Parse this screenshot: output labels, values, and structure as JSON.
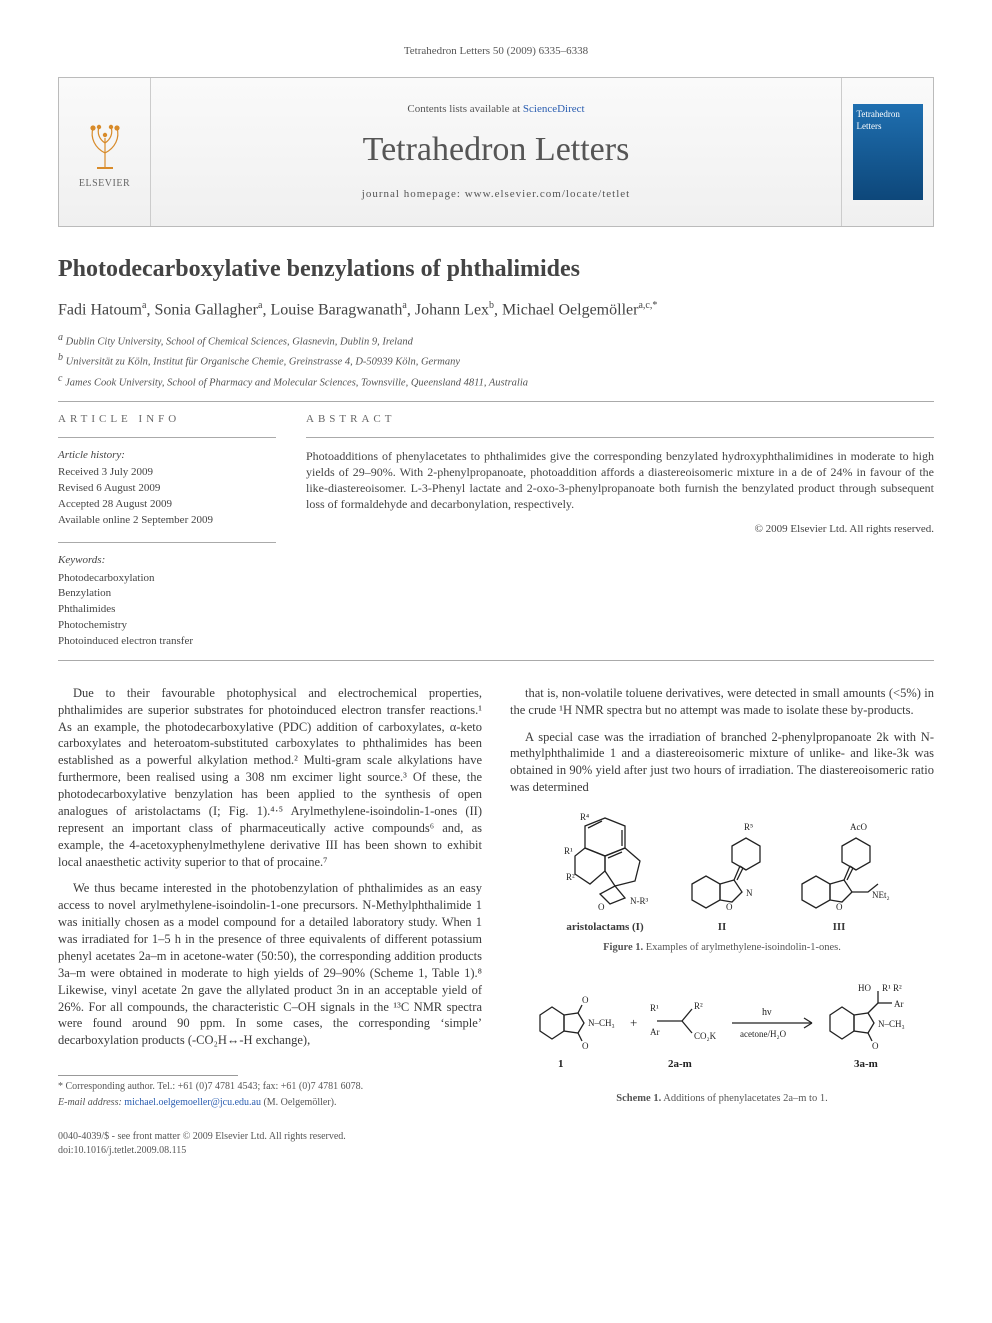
{
  "running_head": "Tetrahedron Letters 50 (2009) 6335–6338",
  "masthead": {
    "publisher": "ELSEVIER",
    "contents_prefix": "Contents lists available at ",
    "contents_link": "ScienceDirect",
    "journal": "Tetrahedron Letters",
    "homepage_label": "journal homepage: ",
    "homepage_url": "www.elsevier.com/locate/tetlet",
    "cover_text": "Tetrahedron Letters"
  },
  "title": "Photodecarboxylative benzylations of phthalimides",
  "authors_html": "Fadi Hatoum<sup>a</sup>, Sonia Gallagher<sup>a</sup>, Louise Baragwanath<sup>a</sup>, Johann Lex<sup>b</sup>, Michael Oelgemöller<sup>a,c,*</sup>",
  "affiliations": {
    "a": "Dublin City University, School of Chemical Sciences, Glasnevin, Dublin 9, Ireland",
    "b": "Universität zu Köln, Institut für Organische Chemie, Greinstrasse 4, D-50939 Köln, Germany",
    "c": "James Cook University, School of Pharmacy and Molecular Sciences, Townsville, Queensland 4811, Australia"
  },
  "info": {
    "head": "ARTICLE INFO",
    "history_head": "Article history:",
    "received": "Received 3 July 2009",
    "revised": "Revised 6 August 2009",
    "accepted": "Accepted 28 August 2009",
    "online": "Available online 2 September 2009",
    "keywords_head": "Keywords:",
    "keywords": [
      "Photodecarboxylation",
      "Benzylation",
      "Phthalimides",
      "Photochemistry",
      "Photoinduced electron transfer"
    ]
  },
  "abstract": {
    "head": "ABSTRACT",
    "text": "Photoadditions of phenylacetates to phthalimides give the corresponding benzylated hydroxyphthalimidines in moderate to high yields of 29–90%. With 2-phenylpropanoate, photoaddition affords a diastereoisomeric mixture in a de of 24% in favour of the like-diastereoisomer. L-3-Phenyl lactate and 2-oxo-3-phenylpropanoate both furnish the benzylated product through subsequent loss of formaldehyde and decarbonylation, respectively.",
    "copyright": "© 2009 Elsevier Ltd. All rights reserved."
  },
  "body": {
    "p1": "Due to their favourable photophysical and electrochemical properties, phthalimides are superior substrates for photoinduced electron transfer reactions.¹ As an example, the photodecarboxylative (PDC) addition of carboxylates, α-keto carboxylates and heteroatom-substituted carboxylates to phthalimides has been established as a powerful alkylation method.² Multi-gram scale alkylations have furthermore, been realised using a 308 nm excimer light source.³ Of these, the photodecarboxylative benzylation has been applied to the synthesis of open analogues of aristolactams (I; Fig. 1).⁴·⁵ Arylmethylene-isoindolin-1-ones (II) represent an important class of pharmaceutically active compounds⁶ and, as example, the 4-acetoxyphenylmethylene derivative III has been shown to exhibit local anaesthetic activity superior to that of procaine.⁷",
    "p2": "We thus became interested in the photobenzylation of phthalimides as an easy access to novel arylmethylene-isoindolin-1-one precursors. N-Methylphthalimide 1 was initially chosen as a model compound for a detailed laboratory study. When 1 was irradiated for 1–5 h in the presence of three equivalents of different potassium phenyl acetates 2a–m in acetone-water (50:50), the corresponding addition products 3a–m were obtained in moderate to high yields of 29–90% (Scheme 1, Table 1).⁸ Likewise, vinyl acetate 2n gave the allylated product 3n in an acceptable yield of 26%. For all compounds, the characteristic C–OH signals in the ¹³C NMR spectra were found around 90 ppm. In some cases, the corresponding ‘simple’ decarboxylation products (-CO₂H↔-H exchange),",
    "p3": "that is, non-volatile toluene derivatives, were detected in small amounts (<5%) in the crude ¹H NMR spectra but no attempt was made to isolate these by-products.",
    "p4": "A special case was the irradiation of branched 2-phenylpropanoate 2k with N-methylphthalimide 1 and a diastereoisomeric mixture of unlike- and like-3k was obtained in 90% yield after just two hours of irradiation. The diastereoisomeric ratio was determined"
  },
  "figure1": {
    "structures": [
      {
        "label": "aristolactams (I)",
        "subst": [
          "R¹",
          "R²",
          "R³",
          "R⁴"
        ]
      },
      {
        "label": "II",
        "subst": [
          "R⁵"
        ]
      },
      {
        "label": "III",
        "subst": [
          "AcO",
          "NEt₂"
        ]
      }
    ],
    "caption_bold": "Figure 1.",
    "caption_rest": " Examples of arylmethylene-isoindolin-1-ones."
  },
  "scheme1": {
    "reagent_labels": [
      "1",
      "2a-m",
      "3a-m"
    ],
    "conditions_top": "hν",
    "conditions_bottom": "acetone/H₂O",
    "substituents": [
      "N–CH₃",
      "R¹",
      "R²",
      "Ar",
      "CO₂K",
      "HO"
    ],
    "caption_bold": "Scheme 1.",
    "caption_rest": " Additions of phenylacetates 2a–m to 1."
  },
  "footer": {
    "corr_label": "* Corresponding author. Tel.: +61 (0)7 4781 4543; fax: +61 (0)7 4781 6078.",
    "email_label": "E-mail address:",
    "email": "michael.oelgemoeller@jcu.edu.au",
    "email_who": "(M. Oelgemöller).",
    "front_matter": "0040-4039/$ - see front matter © 2009 Elsevier Ltd. All rights reserved.",
    "doi": "doi:10.1016/j.tetlet.2009.08.115"
  },
  "colors": {
    "link": "#2a5db0",
    "text": "#3a3a3a",
    "rule": "#aaaaaa",
    "masthead_bg_top": "#fafafa",
    "masthead_bg_bottom": "#f0f0f0",
    "cover_top": "#1f6fb0",
    "cover_bottom": "#0d477a"
  }
}
